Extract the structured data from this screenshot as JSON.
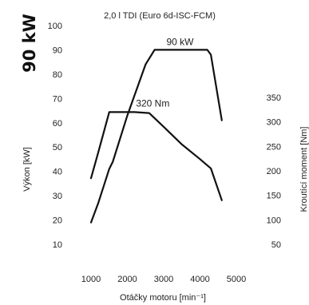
{
  "chart_data": {
    "type": "line",
    "title": "2,0 l TDI (Euro 6d-ISC-FCM)",
    "badge": "90 kW",
    "xlabel": "Otáčky motoru [min⁻¹]",
    "ylabel_left": "Výkon [kW]",
    "ylabel_right": "Kroutící moment [Nm]",
    "xlim": [
      1000,
      5000
    ],
    "ylim_left": [
      10,
      100
    ],
    "ylim_right": [
      50,
      350
    ],
    "x_ticks": [
      1000,
      2000,
      3000,
      4000,
      5000
    ],
    "y_ticks_left": [
      10,
      20,
      30,
      40,
      50,
      60,
      70,
      80,
      90,
      100
    ],
    "y_ticks_right": [
      50,
      100,
      150,
      200,
      250,
      300,
      350
    ],
    "grid": false,
    "series": [
      {
        "name": "power",
        "axis": "left",
        "label": "90 kW",
        "points": [
          [
            1000,
            19
          ],
          [
            1200,
            27
          ],
          [
            1500,
            41
          ],
          [
            1600,
            44
          ],
          [
            2000,
            63
          ],
          [
            2500,
            84
          ],
          [
            2750,
            90
          ],
          [
            4200,
            90
          ],
          [
            4300,
            88
          ],
          [
            4600,
            61
          ]
        ]
      },
      {
        "name": "torque",
        "axis": "right",
        "label": "320 Nm",
        "points": [
          [
            1000,
            185
          ],
          [
            1200,
            238
          ],
          [
            1500,
            320
          ],
          [
            2200,
            320
          ],
          [
            2600,
            318
          ],
          [
            3000,
            290
          ],
          [
            3500,
            254
          ],
          [
            4000,
            224
          ],
          [
            4300,
            205
          ],
          [
            4600,
            140
          ]
        ]
      }
    ]
  }
}
